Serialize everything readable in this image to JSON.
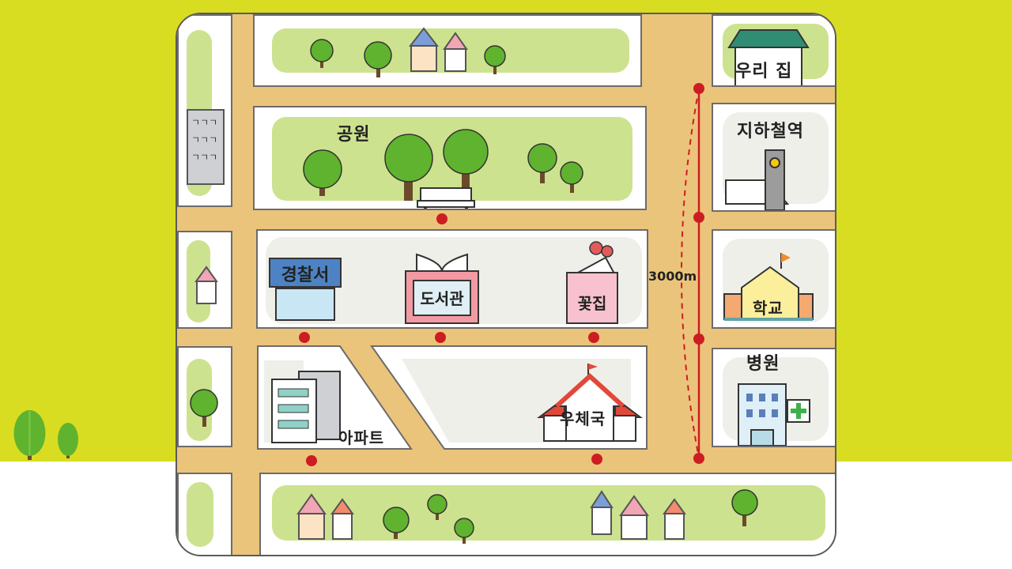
{
  "places": {
    "home": "우리 집",
    "subway": "지하철역",
    "park": "공원",
    "police": "경찰서",
    "library": "도서관",
    "flower_shop": "꽃집",
    "school": "학교",
    "hospital": "병원",
    "apartment": "아파트",
    "post_office": "우체국"
  },
  "distance_label": "3000m",
  "building_glyphs": "ㄱㄱㄱ",
  "colors": {
    "background": "#d9dd21",
    "road": "#ebc47b",
    "grass": "#cde28f",
    "route_marker": "#cc1d22"
  }
}
